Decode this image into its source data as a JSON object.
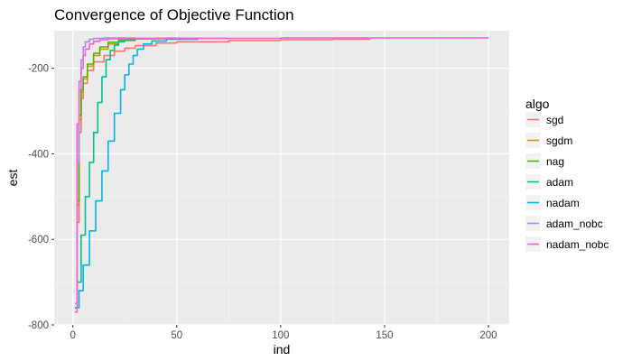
{
  "chart_data": {
    "type": "line",
    "title": "Convergence of Objective Function",
    "xlabel": "ind",
    "ylabel": "est",
    "xlim": [
      -9,
      210
    ],
    "ylim": [
      -800,
      -112
    ],
    "x_ticks": [
      0,
      50,
      100,
      150,
      200
    ],
    "y_ticks": [
      -800,
      -600,
      -400,
      -200
    ],
    "grid": true,
    "legend_title": "algo",
    "legend_position": "right",
    "series": [
      {
        "name": "sgd",
        "color": "#F8766D",
        "points": [
          [
            1,
            -760
          ],
          [
            2,
            -560
          ],
          [
            3,
            -350
          ],
          [
            4,
            -270
          ],
          [
            5,
            -235
          ],
          [
            7,
            -205
          ],
          [
            10,
            -185
          ],
          [
            15,
            -170
          ],
          [
            20,
            -160
          ],
          [
            25,
            -153
          ],
          [
            30,
            -147
          ],
          [
            40,
            -141
          ],
          [
            50,
            -138
          ],
          [
            75,
            -135
          ],
          [
            100,
            -133
          ],
          [
            125,
            -132
          ],
          [
            143,
            -131
          ]
        ]
      },
      {
        "name": "sgdm",
        "color": "#C49A00",
        "points": [
          [
            1,
            -760
          ],
          [
            2,
            -520
          ],
          [
            3,
            -320
          ],
          [
            4,
            -255
          ],
          [
            5,
            -225
          ],
          [
            7,
            -195
          ],
          [
            10,
            -170
          ],
          [
            13,
            -155
          ],
          [
            17,
            -143
          ],
          [
            22,
            -135
          ],
          [
            30,
            -131
          ],
          [
            45,
            -130
          ],
          [
            60,
            -130
          ]
        ]
      },
      {
        "name": "nag",
        "color": "#53B400",
        "points": [
          [
            1,
            -760
          ],
          [
            2,
            -510
          ],
          [
            3,
            -310
          ],
          [
            4,
            -250
          ],
          [
            5,
            -220
          ],
          [
            7,
            -190
          ],
          [
            10,
            -165
          ],
          [
            13,
            -150
          ],
          [
            17,
            -139
          ],
          [
            22,
            -133
          ],
          [
            30,
            -130
          ],
          [
            45,
            -130
          ],
          [
            55,
            -130
          ]
        ]
      },
      {
        "name": "adam",
        "color": "#00C094",
        "points": [
          [
            1,
            -760
          ],
          [
            2,
            -700
          ],
          [
            4,
            -590
          ],
          [
            6,
            -500
          ],
          [
            8,
            -420
          ],
          [
            10,
            -350
          ],
          [
            12,
            -280
          ],
          [
            14,
            -220
          ],
          [
            16,
            -180
          ],
          [
            18,
            -158
          ],
          [
            20,
            -146
          ],
          [
            22,
            -138
          ],
          [
            25,
            -133
          ],
          [
            30,
            -131
          ],
          [
            40,
            -130
          ],
          [
            60,
            -130
          ]
        ]
      },
      {
        "name": "nadam",
        "color": "#00B6EB",
        "points": [
          [
            1,
            -760
          ],
          [
            3,
            -720
          ],
          [
            5,
            -660
          ],
          [
            8,
            -580
          ],
          [
            11,
            -510
          ],
          [
            14,
            -440
          ],
          [
            17,
            -370
          ],
          [
            20,
            -305
          ],
          [
            23,
            -250
          ],
          [
            25,
            -215
          ],
          [
            27,
            -190
          ],
          [
            29,
            -170
          ],
          [
            31,
            -155
          ],
          [
            34,
            -143
          ],
          [
            38,
            -136
          ],
          [
            45,
            -132
          ],
          [
            60,
            -130
          ],
          [
            75,
            -130
          ]
        ]
      },
      {
        "name": "adam_nobc",
        "color": "#A58AFF",
        "points": [
          [
            1,
            -750
          ],
          [
            2,
            -420
          ],
          [
            3,
            -230
          ],
          [
            4,
            -180
          ],
          [
            5,
            -150
          ],
          [
            6,
            -138
          ],
          [
            8,
            -132
          ],
          [
            10,
            -130
          ],
          [
            15,
            -129
          ],
          [
            20,
            -129
          ],
          [
            30,
            -129
          ]
        ]
      },
      {
        "name": "nadam_nobc",
        "color": "#FB61D7",
        "points": [
          [
            1,
            -770
          ],
          [
            2,
            -330
          ],
          [
            3,
            -250
          ],
          [
            4,
            -200
          ],
          [
            5,
            -170
          ],
          [
            6,
            -155
          ],
          [
            8,
            -143
          ],
          [
            10,
            -137
          ],
          [
            13,
            -133
          ],
          [
            17,
            -131
          ],
          [
            25,
            -130
          ],
          [
            50,
            -130
          ],
          [
            100,
            -129
          ],
          [
            150,
            -129
          ],
          [
            200,
            -129
          ]
        ]
      }
    ]
  }
}
